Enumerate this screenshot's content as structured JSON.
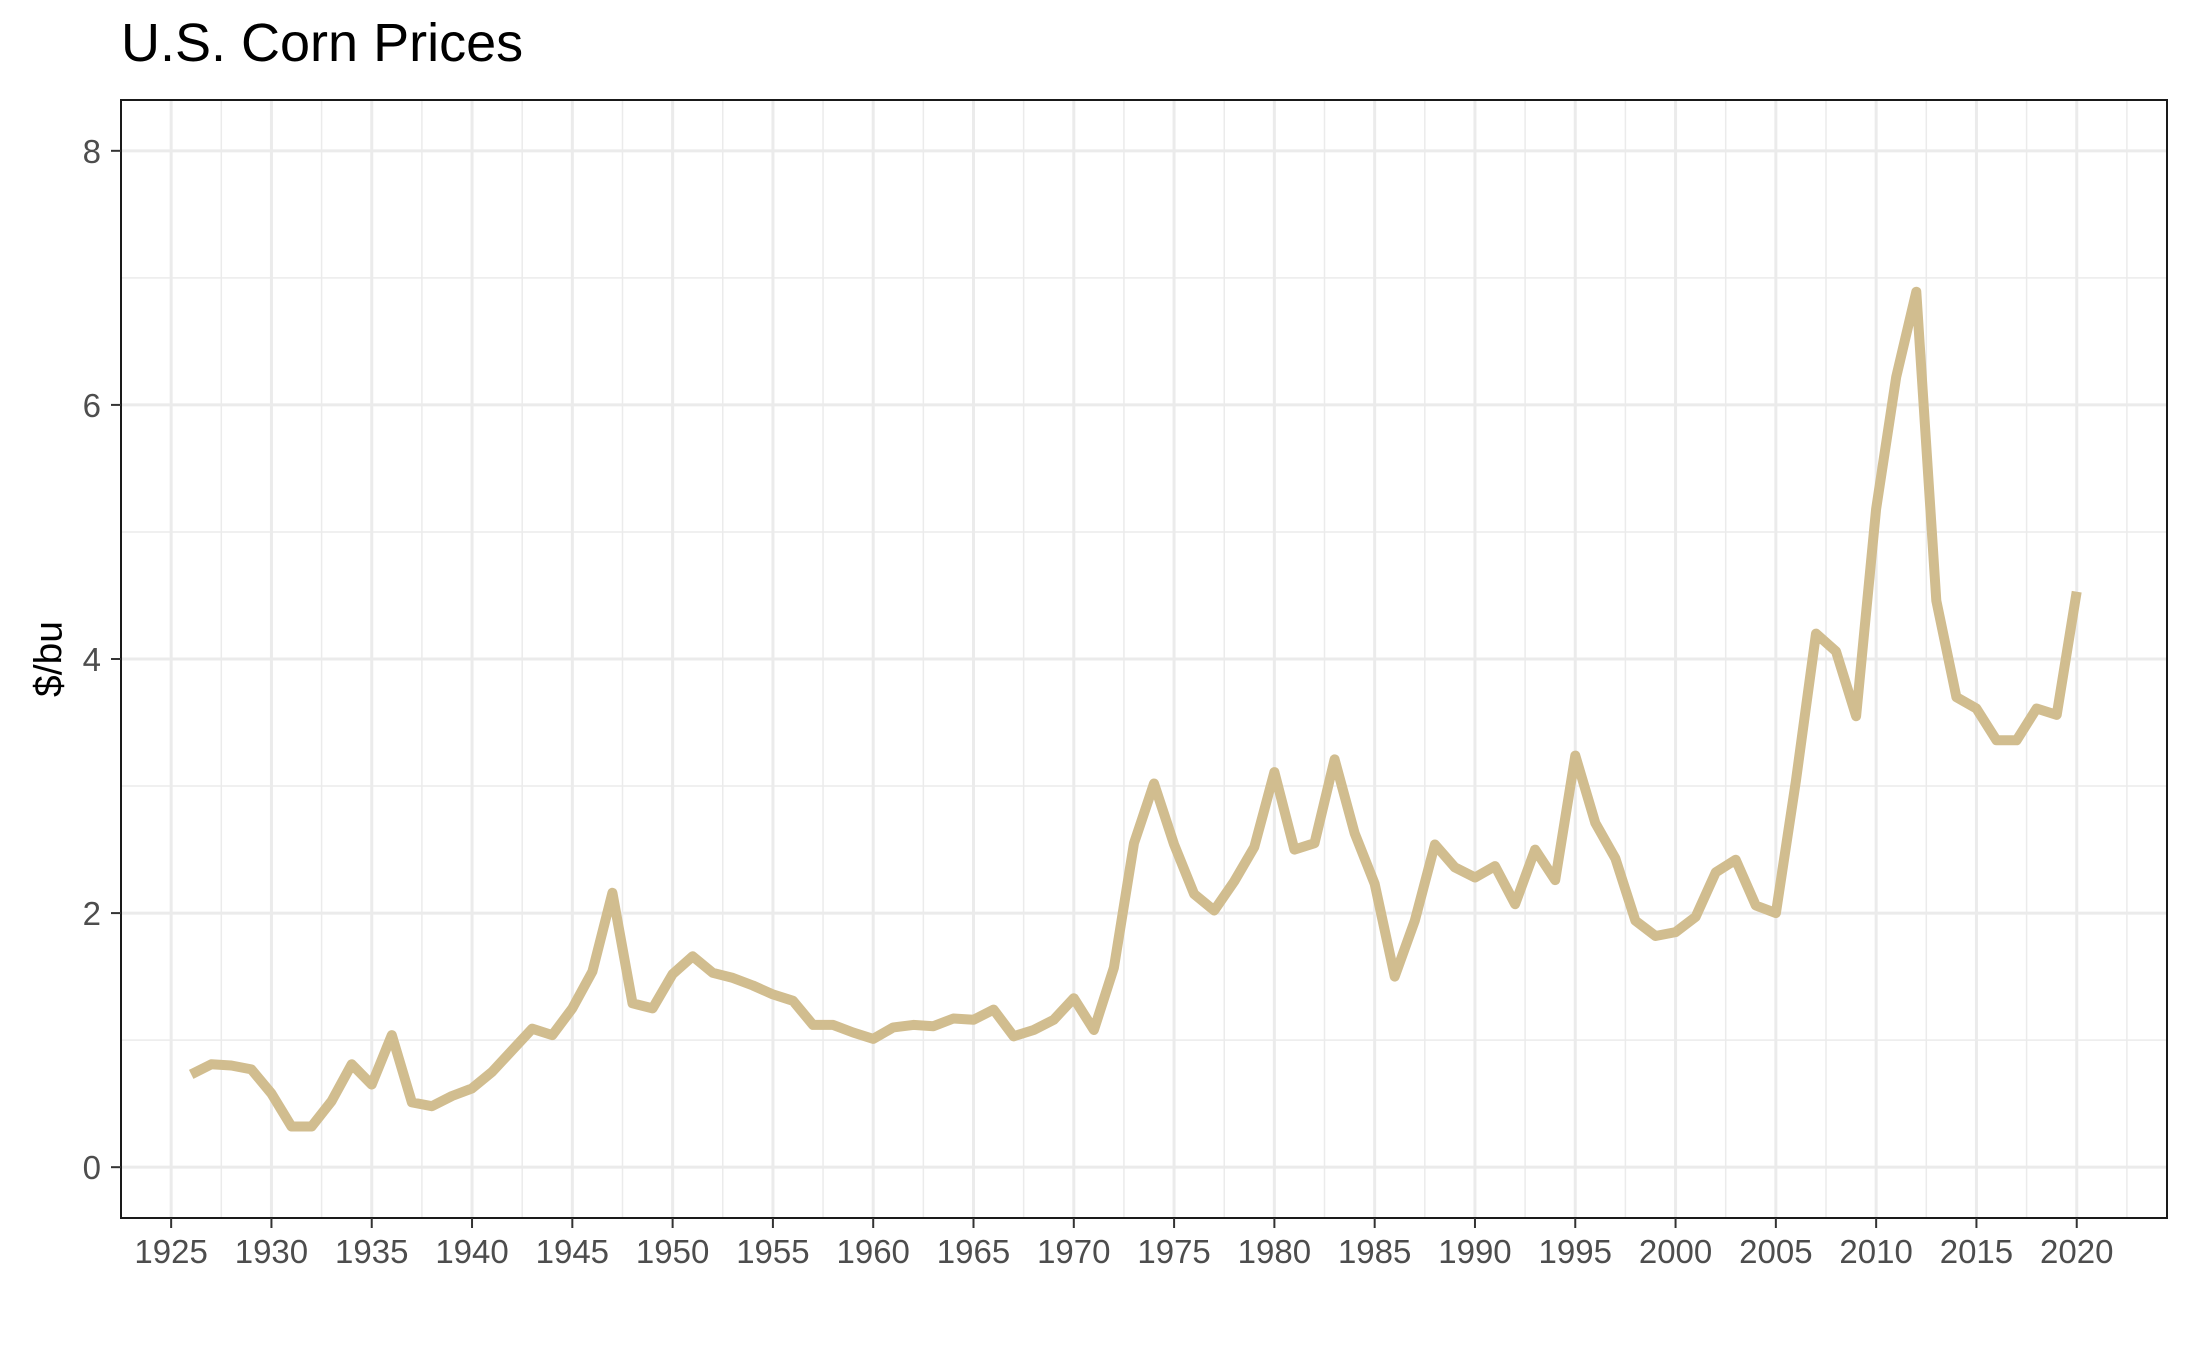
{
  "chart_data": {
    "type": "line",
    "title": "U.S. Corn Prices",
    "xlabel": "",
    "ylabel": "$/bu",
    "xlim": [
      1922.5,
      2024.5
    ],
    "ylim": [
      -0.4,
      8.4
    ],
    "x_ticks": [
      1925,
      1930,
      1935,
      1940,
      1945,
      1950,
      1955,
      1960,
      1965,
      1970,
      1975,
      1980,
      1985,
      1990,
      1995,
      2000,
      2005,
      2010,
      2015,
      2020
    ],
    "y_ticks": [
      0,
      2,
      4,
      6,
      8
    ],
    "grid": true,
    "line_color": "#d1bd8f",
    "series": [
      {
        "x": [
          1926,
          1927,
          1928,
          1929,
          1930,
          1931,
          1932,
          1933,
          1934,
          1935,
          1936,
          1937,
          1938,
          1939,
          1940,
          1941,
          1942,
          1943,
          1944,
          1945,
          1946,
          1947,
          1948,
          1949,
          1950,
          1951,
          1952,
          1953,
          1954,
          1955,
          1956,
          1957,
          1958,
          1959,
          1960,
          1961,
          1962,
          1963,
          1964,
          1965,
          1966,
          1967,
          1968,
          1969,
          1970,
          1971,
          1972,
          1973,
          1974,
          1975,
          1976,
          1977,
          1978,
          1979,
          1980,
          1981,
          1982,
          1983,
          1984,
          1985,
          1986,
          1987,
          1988,
          1989,
          1990,
          1991,
          1992,
          1993,
          1994,
          1995,
          1996,
          1997,
          1998,
          1999,
          2000,
          2001,
          2002,
          2003,
          2004,
          2005,
          2006,
          2007,
          2008,
          2009,
          2010,
          2011,
          2012,
          2013,
          2014,
          2015,
          2016,
          2017,
          2018,
          2019,
          2020
        ],
        "y": [
          0.73,
          0.81,
          0.8,
          0.77,
          0.58,
          0.32,
          0.32,
          0.52,
          0.81,
          0.65,
          1.04,
          0.51,
          0.48,
          0.56,
          0.62,
          0.75,
          0.92,
          1.09,
          1.04,
          1.25,
          1.54,
          2.16,
          1.29,
          1.25,
          1.52,
          1.66,
          1.53,
          1.49,
          1.43,
          1.36,
          1.31,
          1.12,
          1.12,
          1.06,
          1.01,
          1.1,
          1.12,
          1.11,
          1.17,
          1.16,
          1.24,
          1.03,
          1.08,
          1.16,
          1.33,
          1.08,
          1.57,
          2.55,
          3.02,
          2.54,
          2.15,
          2.02,
          2.25,
          2.52,
          3.11,
          2.5,
          2.55,
          3.21,
          2.63,
          2.23,
          1.5,
          1.94,
          2.54,
          2.36,
          2.28,
          2.37,
          2.07,
          2.5,
          2.26,
          3.24,
          2.71,
          2.43,
          1.94,
          1.82,
          1.85,
          1.97,
          2.32,
          2.42,
          2.06,
          2.0,
          3.04,
          4.2,
          4.06,
          3.55,
          5.18,
          6.22,
          6.89,
          4.46,
          3.7,
          3.61,
          3.36,
          3.36,
          3.61,
          3.56,
          4.53
        ]
      }
    ]
  }
}
